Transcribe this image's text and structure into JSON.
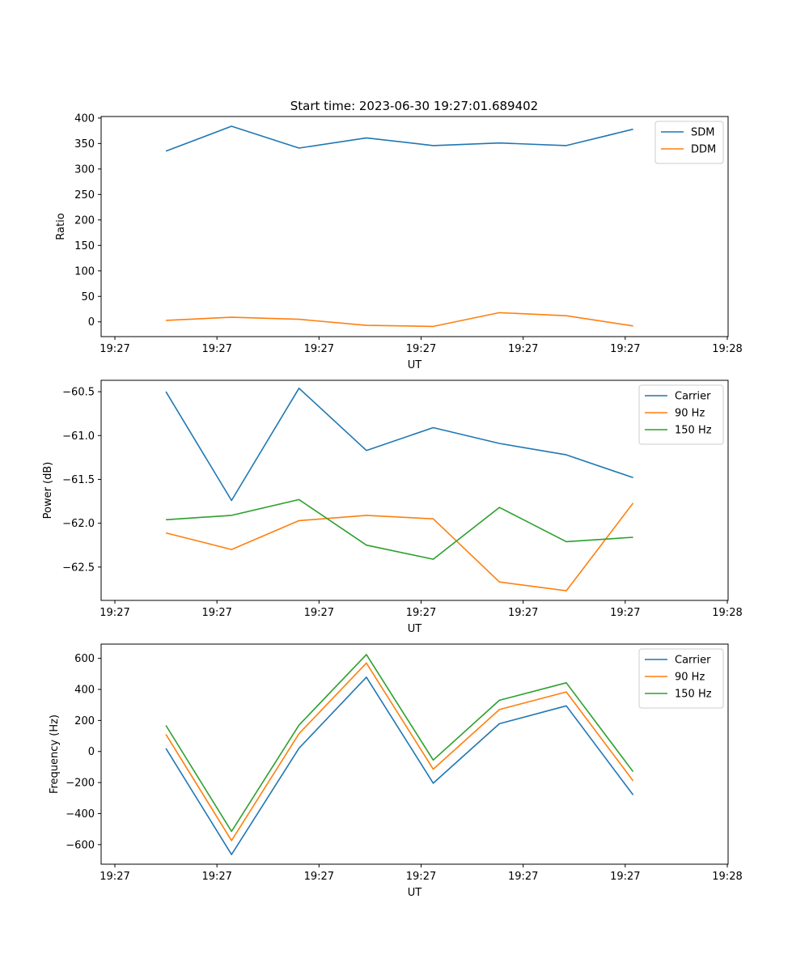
{
  "title": "Start time: 2023-06-30 19:27:01.689402",
  "colors": {
    "blue": "#1f77b4",
    "orange": "#ff7f0e",
    "green": "#2ca02c"
  },
  "chart_data": [
    {
      "type": "line",
      "xlabel": "UT",
      "ylabel": "Ratio",
      "x_ticks": [
        "19:27",
        "19:27",
        "19:27",
        "19:27",
        "19:27",
        "19:27",
        "19:28"
      ],
      "x_tick_pos": [
        0,
        0.1667,
        0.3333,
        0.5,
        0.6667,
        0.8333,
        1.0
      ],
      "x_points": [
        0.0833,
        0.1905,
        0.3006,
        0.4107,
        0.5198,
        0.6279,
        0.7371,
        0.8462
      ],
      "ylim": [
        -29,
        403
      ],
      "y_ticks": [
        0,
        50,
        100,
        150,
        200,
        250,
        300,
        350,
        400
      ],
      "grid": false,
      "legend": "upper right",
      "series": [
        {
          "name": "SDM",
          "color": "#1f77b4",
          "values": [
            335,
            384,
            341,
            361,
            346,
            351,
            346,
            378
          ]
        },
        {
          "name": "DDM",
          "color": "#ff7f0e",
          "values": [
            3,
            9,
            5,
            -7,
            -9,
            18,
            12,
            -8
          ]
        }
      ]
    },
    {
      "type": "line",
      "xlabel": "UT",
      "ylabel": "Power (dB)",
      "x_ticks": [
        "19:27",
        "19:27",
        "19:27",
        "19:27",
        "19:27",
        "19:27",
        "19:28"
      ],
      "x_tick_pos": [
        0,
        0.1667,
        0.3333,
        0.5,
        0.6667,
        0.8333,
        1.0
      ],
      "x_points": [
        0.0833,
        0.1905,
        0.3006,
        0.4107,
        0.5198,
        0.6279,
        0.7371,
        0.8462
      ],
      "ylim": [
        -62.88,
        -60.37
      ],
      "y_ticks": [
        -62.5,
        -62.0,
        -61.5,
        -61.0,
        -60.5
      ],
      "y_tick_labels": [
        "−62.5",
        "−62.0",
        "−61.5",
        "−61.0",
        "−60.5"
      ],
      "grid": false,
      "legend": "upper right",
      "series": [
        {
          "name": "Carrier",
          "color": "#1f77b4",
          "values": [
            -60.5,
            -61.74,
            -60.46,
            -61.17,
            -60.91,
            -61.09,
            -61.22,
            -61.48
          ]
        },
        {
          "name": "90 Hz",
          "color": "#ff7f0e",
          "values": [
            -62.11,
            -62.3,
            -61.97,
            -61.91,
            -61.95,
            -62.67,
            -62.77,
            -61.77
          ]
        },
        {
          "name": "150 Hz",
          "color": "#2ca02c",
          "values": [
            -61.96,
            -61.91,
            -61.73,
            -62.25,
            -62.41,
            -61.82,
            -62.21,
            -62.16
          ]
        }
      ]
    },
    {
      "type": "line",
      "xlabel": "UT",
      "ylabel": "Frequency (Hz)",
      "x_ticks": [
        "19:27",
        "19:27",
        "19:27",
        "19:27",
        "19:27",
        "19:27",
        "19:28"
      ],
      "x_tick_pos": [
        0,
        0.1667,
        0.3333,
        0.5,
        0.6667,
        0.8333,
        1.0
      ],
      "x_points": [
        0.0833,
        0.1905,
        0.3006,
        0.4107,
        0.5198,
        0.6279,
        0.7371,
        0.8462
      ],
      "ylim": [
        -726,
        692
      ],
      "y_ticks": [
        -600,
        -400,
        -200,
        0,
        200,
        400,
        600
      ],
      "y_tick_labels": [
        "−600",
        "−400",
        "−200",
        "0",
        "200",
        "400",
        "600"
      ],
      "grid": false,
      "legend": "upper right",
      "series": [
        {
          "name": "Carrier",
          "color": "#1f77b4",
          "values": [
            20,
            -664,
            21,
            479,
            -204,
            179,
            294,
            -280
          ]
        },
        {
          "name": "90 Hz",
          "color": "#ff7f0e",
          "values": [
            110,
            -574,
            115,
            570,
            -114,
            270,
            384,
            -189
          ]
        },
        {
          "name": "150 Hz",
          "color": "#2ca02c",
          "values": [
            168,
            -515,
            170,
            625,
            -55,
            330,
            443,
            -130
          ]
        }
      ]
    }
  ]
}
